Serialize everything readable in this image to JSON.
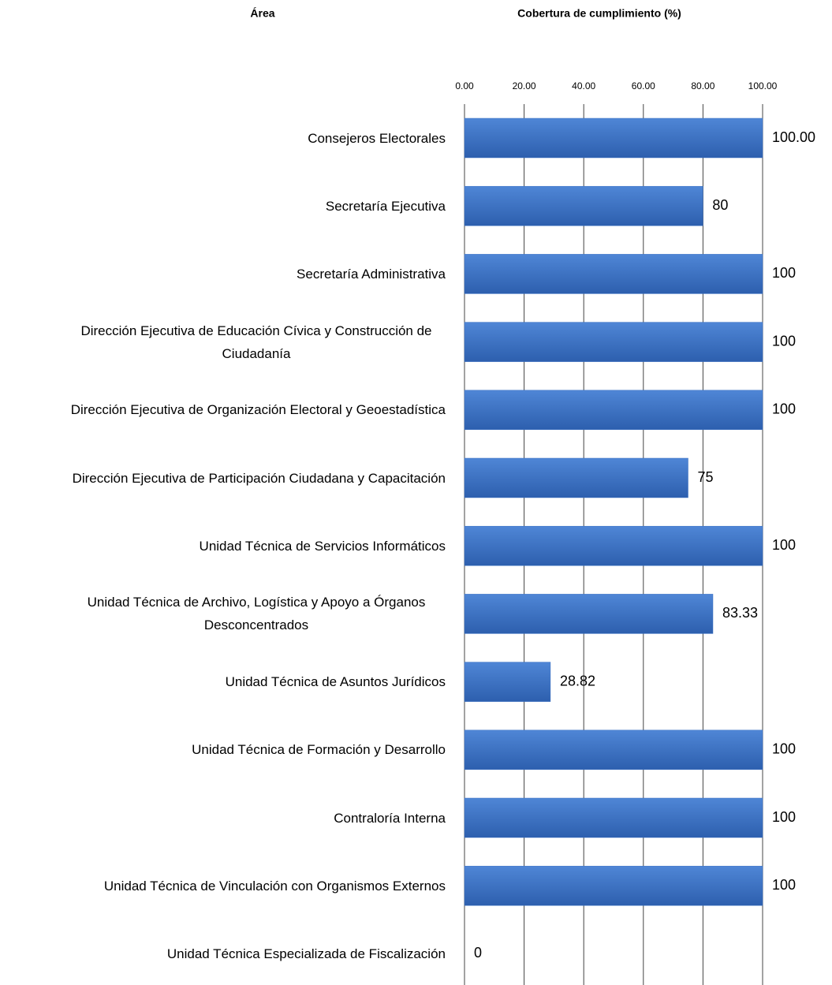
{
  "chart_data": {
    "type": "barh",
    "category_axis_label": "Área",
    "title": "Cobertura de cumplimiento (%)",
    "categories": [
      "Consejeros Electorales",
      "Secretaría Ejecutiva",
      "Secretaría Administrativa",
      "Dirección Ejecutiva de Educación Cívica y Construcción de Ciudadanía",
      "Dirección Ejecutiva de Organización Electoral y Geoestadística",
      "Dirección Ejecutiva de Participación Ciudadana y Capacitación",
      "Unidad Técnica de Servicios Informáticos",
      "Unidad Técnica de Archivo, Logística y Apoyo a Órganos Desconcentrados",
      "Unidad Técnica de Asuntos Jurídicos",
      "Unidad Técnica de Formación y Desarrollo",
      "Contraloría Interna",
      "Unidad Técnica de Vinculación con Organismos Externos",
      "Unidad Técnica Especializada de Fiscalización"
    ],
    "values": [
      100,
      80,
      100,
      100,
      100,
      75,
      100,
      83.33,
      28.82,
      100,
      100,
      100,
      0
    ],
    "value_labels": [
      "100.00",
      "80",
      "100",
      "100",
      "100",
      "75",
      "100",
      "83.33",
      "28.82",
      "100",
      "100",
      "100",
      "0"
    ],
    "color": "#3b70c2",
    "xlim": [
      0,
      100
    ],
    "xticks": [
      {
        "value": 0,
        "label": "0.00"
      },
      {
        "value": 20,
        "label": "20.00"
      },
      {
        "value": 40,
        "label": "40.00"
      },
      {
        "value": 60,
        "label": "60.00"
      },
      {
        "value": 80,
        "label": "80.00"
      },
      {
        "value": 100,
        "label": "100.00"
      }
    ],
    "grid": true
  }
}
